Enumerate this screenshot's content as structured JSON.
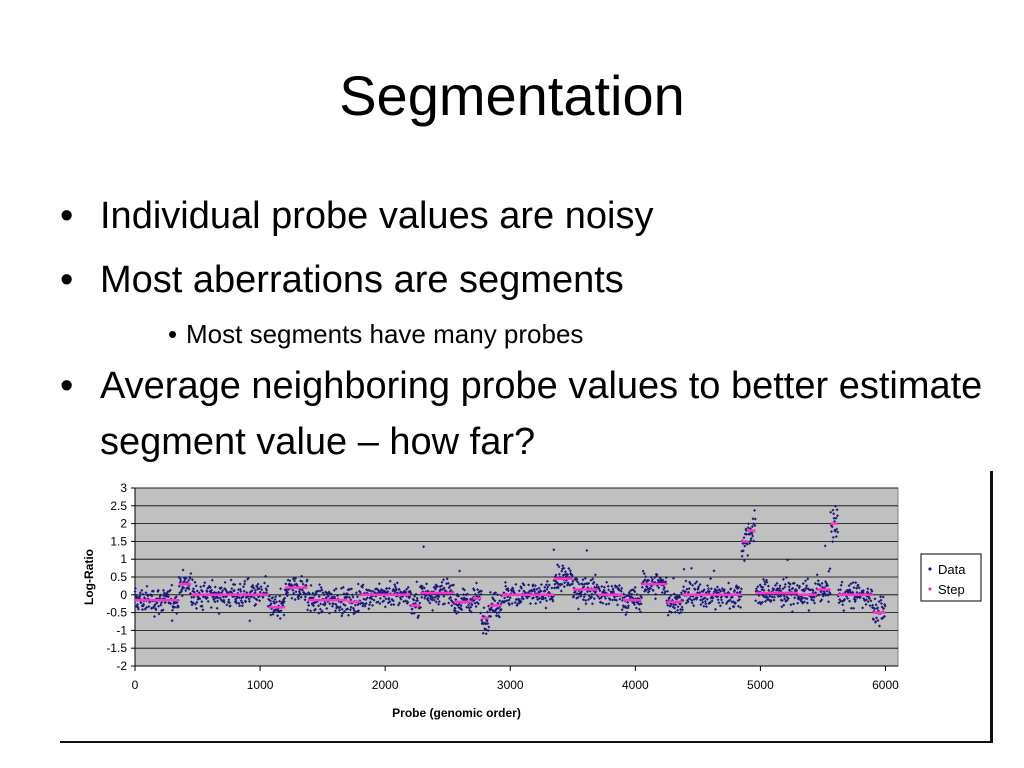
{
  "slide": {
    "title": "Segmentation",
    "bullets": [
      {
        "level": 1,
        "text": "Individual probe values are noisy"
      },
      {
        "level": 1,
        "text": "Most aberrations are segments"
      },
      {
        "level": 2,
        "text": "Most segments have many probes"
      },
      {
        "level": 1,
        "text": "Average neighboring probe values to better estimate segment value – how far?"
      }
    ]
  },
  "chart_data": {
    "type": "scatter",
    "xlabel": "Probe (genomic order)",
    "ylabel": "Log-Ratio",
    "xlim": [
      0,
      6100
    ],
    "ylim": [
      -2,
      3
    ],
    "xticks": [
      "0",
      "1000",
      "2000",
      "3000",
      "4000",
      "5000",
      "6000"
    ],
    "yticks": [
      "3",
      "2.5",
      "2",
      "1.5",
      "1",
      "0.5",
      "0",
      "-0.5",
      "-1",
      "-1.5",
      "-2"
    ],
    "grid": true,
    "legend_position": "right",
    "series": [
      {
        "name": "Data",
        "marker": "diamond",
        "color": "#1a1a7a",
        "description_levels": [
          {
            "x_range": [
              0,
              350
            ],
            "level": -0.15
          },
          {
            "x_range": [
              350,
              450
            ],
            "level": 0.3
          },
          {
            "x_range": [
              450,
              1070
            ],
            "level": 0.0
          },
          {
            "x_range": [
              1070,
              1200
            ],
            "level": -0.35
          },
          {
            "x_range": [
              1200,
              1380
            ],
            "level": 0.2
          },
          {
            "x_range": [
              1380,
              1700
            ],
            "level": -0.15
          },
          {
            "x_range": [
              1700,
              1800
            ],
            "level": -0.2
          },
          {
            "x_range": [
              1800,
              2200
            ],
            "level": 0.0
          },
          {
            "x_range": [
              2200,
              2280
            ],
            "level": -0.3
          },
          {
            "x_range": [
              2280,
              2550
            ],
            "level": 0.05
          },
          {
            "x_range": [
              2550,
              2700
            ],
            "level": -0.2
          },
          {
            "x_range": [
              2700,
              2770
            ],
            "level": -0.1
          },
          {
            "x_range": [
              2770,
              2830
            ],
            "level": -0.65
          },
          {
            "x_range": [
              2830,
              2930
            ],
            "level": -0.3
          },
          {
            "x_range": [
              2930,
              3350
            ],
            "level": 0.0
          },
          {
            "x_range": [
              3350,
              3500
            ],
            "level": 0.45
          },
          {
            "x_range": [
              3500,
              3700
            ],
            "level": 0.15
          },
          {
            "x_range": [
              3700,
              3900
            ],
            "level": 0.0
          },
          {
            "x_range": [
              3900,
              4050
            ],
            "level": -0.15
          },
          {
            "x_range": [
              4050,
              4250
            ],
            "level": 0.3
          },
          {
            "x_range": [
              4250,
              4380
            ],
            "level": -0.2
          },
          {
            "x_range": [
              4380,
              4850
            ],
            "level": 0.0
          },
          {
            "x_range": [
              4850,
              4900
            ],
            "level": 1.5
          },
          {
            "x_range": [
              4900,
              4960
            ],
            "level": 1.8
          },
          {
            "x_range": [
              4960,
              5300
            ],
            "level": 0.05
          },
          {
            "x_range": [
              5300,
              5450
            ],
            "level": 0.0
          },
          {
            "x_range": [
              5450,
              5560
            ],
            "level": 0.15
          },
          {
            "x_range": [
              5560,
              5620
            ],
            "level": 2.0
          },
          {
            "x_range": [
              5620,
              5900
            ],
            "level": 0.0
          },
          {
            "x_range": [
              5900,
              6000
            ],
            "level": -0.5
          }
        ]
      },
      {
        "name": "Step",
        "marker": "dash",
        "color": "#ff33cc"
      }
    ]
  },
  "colors": {
    "plot_bg": "#c0c0c0",
    "grid": "#000000",
    "data": "#1a1a7a",
    "step": "#ff33cc"
  }
}
